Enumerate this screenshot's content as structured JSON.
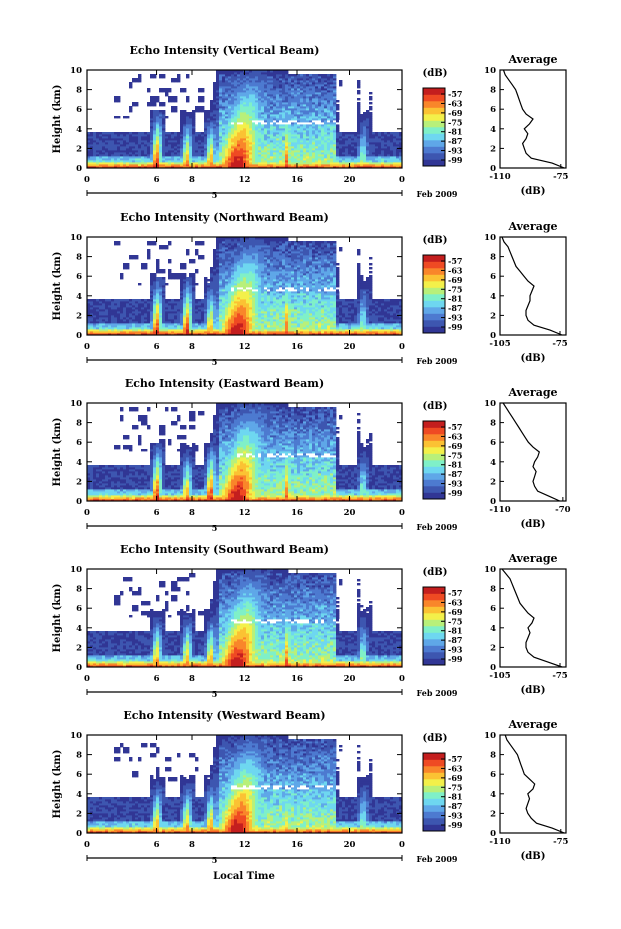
{
  "figure": {
    "x_axis_label": "Local Time",
    "date_label": "Feb 2009",
    "day_label": "5",
    "x_ticks": [
      "0",
      "6",
      "8",
      "12",
      "16",
      "20",
      "0"
    ],
    "y_label": "Height (km)",
    "y_ticks": [
      "0",
      "2",
      "4",
      "6",
      "8",
      "10"
    ],
    "colorbar_unit": "(dB)",
    "colorbar_ticks": [
      "-57",
      "-63",
      "-69",
      "-75",
      "-81",
      "-87",
      "-93",
      "-99"
    ],
    "avg_title": "Average",
    "avg_xlabel": "(dB)"
  },
  "colors": {
    "colormap": [
      "#313695",
      "#3d56b0",
      "#4d7ad0",
      "#5fa7e8",
      "#6ed7f0",
      "#7ff0c8",
      "#b8f07a",
      "#f3f04a",
      "#fbc233",
      "#f9862a",
      "#ef4a23",
      "#c41e1e"
    ]
  },
  "chart_data": [
    {
      "type": "heatmap",
      "title": "Echo Intensity (Vertical Beam)",
      "xlabel": "",
      "ylabel": "Height (km)",
      "xlim": [
        0,
        24
      ],
      "ylim": [
        0,
        10
      ],
      "colorbar_range": [
        -99,
        -57
      ],
      "features": [
        {
          "t": 5.3,
          "peak_db": -57
        },
        {
          "t": 7.6,
          "peak_db": -63
        },
        {
          "t": 9.4,
          "peak_db": -63
        },
        {
          "t": 11.5,
          "peak_db": -57
        },
        {
          "t": 15.2,
          "peak_db": -63
        },
        {
          "t": 18.5,
          "peak_db": -75
        },
        {
          "t": 21.0,
          "peak_db": -75
        }
      ],
      "bright_band_height_km": 4.7,
      "average": {
        "title": "Average",
        "xlabel": "(dB)",
        "x_ticks": [
          "-110",
          "-75"
        ],
        "xlim": [
          -110,
          -72
        ],
        "height_km": [
          0,
          0.5,
          1,
          1.5,
          2,
          2.5,
          3,
          3.5,
          4,
          4.5,
          5,
          5.5,
          6,
          6.5,
          7,
          7.5,
          8,
          8.5,
          9,
          9.5,
          10
        ],
        "db": [
          -73,
          -80,
          -92,
          -95,
          -96,
          -97,
          -95,
          -94,
          -96,
          -93,
          -91,
          -95,
          -97,
          -98,
          -99,
          -100,
          -101,
          -103,
          -105,
          -107,
          -108
        ]
      }
    },
    {
      "type": "heatmap",
      "title": "Echo Intensity (Northward Beam)",
      "xlabel": "",
      "ylabel": "Height (km)",
      "xlim": [
        0,
        24
      ],
      "ylim": [
        0,
        10
      ],
      "colorbar_range": [
        -99,
        -57
      ],
      "features": [
        {
          "t": 5.3,
          "peak_db": -57
        },
        {
          "t": 7.6,
          "peak_db": -57
        },
        {
          "t": 9.4,
          "peak_db": -63
        },
        {
          "t": 11.5,
          "peak_db": -57
        },
        {
          "t": 15.2,
          "peak_db": -63
        },
        {
          "t": 18.5,
          "peak_db": -75
        },
        {
          "t": 21.0,
          "peak_db": -75
        }
      ],
      "bright_band_height_km": 4.7,
      "average": {
        "title": "Average",
        "xlabel": "(dB)",
        "x_ticks": [
          "-105",
          "-75"
        ],
        "xlim": [
          -105,
          -72
        ],
        "height_km": [
          0,
          0.5,
          1,
          1.5,
          2,
          2.5,
          3,
          3.5,
          4,
          4.5,
          5,
          5.5,
          6,
          6.5,
          7,
          7.5,
          8,
          8.5,
          9,
          9.5,
          10
        ],
        "db": [
          -74,
          -80,
          -88,
          -91,
          -92,
          -92,
          -91,
          -90,
          -90,
          -89,
          -88,
          -91,
          -93,
          -95,
          -97,
          -98,
          -99,
          -100,
          -101,
          -103,
          -104
        ]
      }
    },
    {
      "type": "heatmap",
      "title": "Echo Intensity (Eastward Beam)",
      "xlabel": "",
      "ylabel": "Height (km)",
      "xlim": [
        0,
        24
      ],
      "ylim": [
        0,
        10
      ],
      "colorbar_range": [
        -99,
        -57
      ],
      "features": [
        {
          "t": 5.3,
          "peak_db": -57
        },
        {
          "t": 7.6,
          "peak_db": -63
        },
        {
          "t": 9.4,
          "peak_db": -57
        },
        {
          "t": 11.5,
          "peak_db": -57
        },
        {
          "t": 15.2,
          "peak_db": -63
        },
        {
          "t": 18.5,
          "peak_db": -75
        },
        {
          "t": 21.0,
          "peak_db": -75
        }
      ],
      "bright_band_height_km": 4.7,
      "average": {
        "title": "Average",
        "xlabel": "(dB)",
        "x_ticks": [
          "-110",
          "-70"
        ],
        "xlim": [
          -110,
          -68
        ],
        "height_km": [
          0,
          0.5,
          1,
          1.5,
          2,
          2.5,
          3,
          3.5,
          4,
          4.5,
          5,
          5.5,
          6,
          6.5,
          7,
          7.5,
          8,
          8.5,
          9,
          9.5,
          10
        ],
        "db": [
          -72,
          -79,
          -86,
          -88,
          -89,
          -88,
          -87,
          -89,
          -88,
          -86,
          -85,
          -89,
          -92,
          -94,
          -96,
          -98,
          -100,
          -102,
          -104,
          -106,
          -108
        ]
      }
    },
    {
      "type": "heatmap",
      "title": "Echo Intensity (Southward Beam)",
      "xlabel": "",
      "ylabel": "Height (km)",
      "xlim": [
        0,
        24
      ],
      "ylim": [
        0,
        10
      ],
      "colorbar_range": [
        -99,
        -57
      ],
      "features": [
        {
          "t": 5.3,
          "peak_db": -63
        },
        {
          "t": 7.6,
          "peak_db": -63
        },
        {
          "t": 9.4,
          "peak_db": -63
        },
        {
          "t": 11.5,
          "peak_db": -57
        },
        {
          "t": 15.2,
          "peak_db": -63
        },
        {
          "t": 18.5,
          "peak_db": -75
        },
        {
          "t": 21.0,
          "peak_db": -75
        }
      ],
      "bright_band_height_km": 4.7,
      "average": {
        "title": "Average",
        "xlabel": "(dB)",
        "x_ticks": [
          "-105",
          "-75"
        ],
        "xlim": [
          -105,
          -72
        ],
        "height_km": [
          0,
          0.5,
          1,
          1.5,
          2,
          2.5,
          3,
          3.5,
          4,
          4.5,
          5,
          5.5,
          6,
          6.5,
          7,
          7.5,
          8,
          8.5,
          9,
          9.5,
          10
        ],
        "db": [
          -74,
          -81,
          -88,
          -91,
          -92,
          -92,
          -91,
          -90,
          -91,
          -89,
          -88,
          -91,
          -93,
          -95,
          -96,
          -97,
          -98,
          -99,
          -100,
          -102,
          -104
        ]
      }
    },
    {
      "type": "heatmap",
      "title": "Echo Intensity (Westward Beam)",
      "xlabel": "Local Time",
      "ylabel": "Height (km)",
      "xlim": [
        0,
        24
      ],
      "ylim": [
        0,
        10
      ],
      "colorbar_range": [
        -99,
        -57
      ],
      "features": [
        {
          "t": 5.3,
          "peak_db": -63
        },
        {
          "t": 7.6,
          "peak_db": -63
        },
        {
          "t": 9.4,
          "peak_db": -63
        },
        {
          "t": 11.5,
          "peak_db": -57
        },
        {
          "t": 15.2,
          "peak_db": -69
        },
        {
          "t": 18.5,
          "peak_db": -75
        },
        {
          "t": 21.0,
          "peak_db": -75
        }
      ],
      "bright_band_height_km": 4.7,
      "average": {
        "title": "Average",
        "xlabel": "(dB)",
        "x_ticks": [
          "-110",
          "-75"
        ],
        "xlim": [
          -110,
          -72
        ],
        "height_km": [
          0,
          0.5,
          1,
          1.5,
          2,
          2.5,
          3,
          3.5,
          4,
          4.5,
          5,
          5.5,
          6,
          6.5,
          7,
          7.5,
          8,
          8.5,
          9,
          9.5,
          10
        ],
        "db": [
          -73,
          -80,
          -89,
          -92,
          -94,
          -95,
          -94,
          -93,
          -94,
          -91,
          -90,
          -93,
          -96,
          -97,
          -98,
          -99,
          -100,
          -102,
          -104,
          -106,
          -107
        ]
      }
    }
  ]
}
